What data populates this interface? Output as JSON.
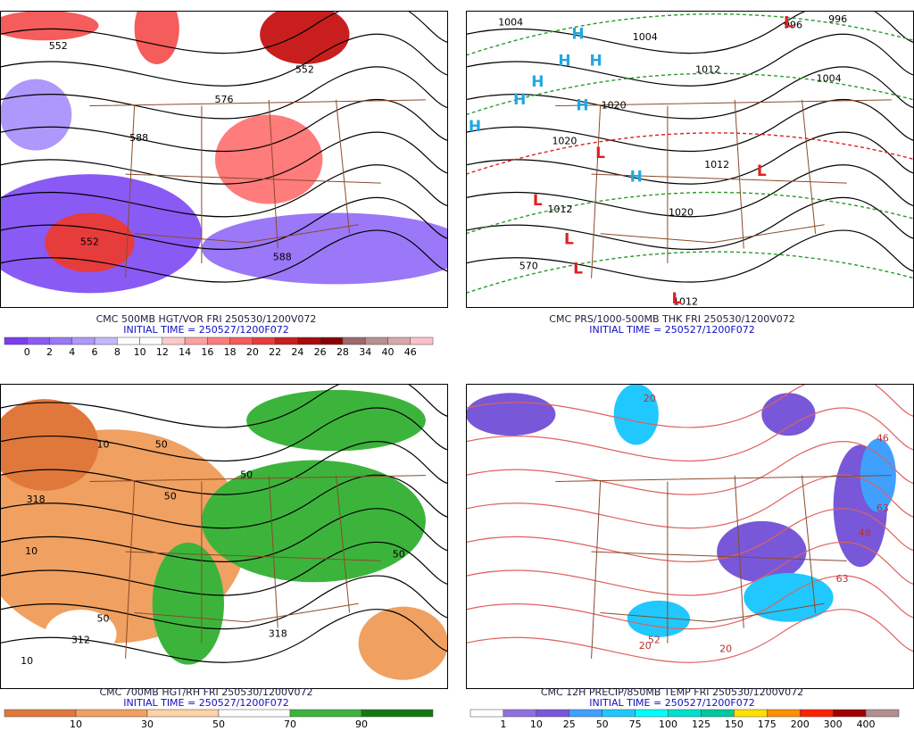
{
  "panels": [
    {
      "title": "CMC 500MB HGT/VOR FRI 250530/1200V072",
      "init_time": "INITIAL TIME = 250527/1200F072",
      "colorbar_labels": [
        "0",
        "2",
        "4",
        "6",
        "8",
        "10",
        "12",
        "14",
        "16",
        "18",
        "20",
        "22",
        "24",
        "26",
        "28",
        "34",
        "40",
        "46"
      ],
      "colorbar_colors": [
        "#7a3cf0",
        "#8a5af5",
        "#9a78f8",
        "#ae98fb",
        "#c4b8ff",
        "#ffffff",
        "#ffffff",
        "#ffc8c8",
        "#ffa0a0",
        "#ff7c7c",
        "#f55c5c",
        "#e63c3c",
        "#c81e1e",
        "#a80a0a",
        "#8a0000",
        "#9c6a6a",
        "#b89090",
        "#d8a8a8",
        "#ffc0cc"
      ],
      "contour_labels": [
        "552",
        "552",
        "576",
        "588",
        "552",
        "588"
      ],
      "highs": [],
      "lows": []
    },
    {
      "title": "CMC PRS/1000-500MB THK FRI 250530/1200V072",
      "init_time": "INITIAL TIME = 250527/1200F072",
      "colorbar_labels": [],
      "colorbar_colors": [],
      "contour_labels": [
        "1004",
        "1004",
        "1012",
        "1020",
        "1020",
        "1004",
        "996",
        "996",
        "1012",
        "1012",
        "1020",
        "570",
        "1012"
      ],
      "highs": [
        "H",
        "H",
        "H",
        "H",
        "H",
        "H",
        "H",
        "H"
      ],
      "lows": [
        "L",
        "L",
        "L",
        "L",
        "L",
        "L",
        "L"
      ]
    },
    {
      "title": "CMC 700MB HGT/RH FRI 250530/1200V072",
      "init_time": "INITIAL TIME = 250527/1200F072",
      "colorbar_labels": [
        "10",
        "30",
        "50",
        "70",
        "90"
      ],
      "colorbar_colors": [
        "#e0783c",
        "#f0a060",
        "#ffd2a8",
        "#ffffff",
        "#3cb43c",
        "#147814"
      ],
      "contour_labels": [
        "50",
        "10",
        "318",
        "50",
        "50",
        "50",
        "10",
        "312",
        "50",
        "318",
        "10"
      ],
      "highs": [],
      "lows": []
    },
    {
      "title": "CMC 12H PRECIP/850MB TEMP FRI 250530/1200V072",
      "init_time": "INITIAL TIME = 250527/1200F072",
      "colorbar_labels": [
        "1",
        "10",
        "25",
        "50",
        "75",
        "100",
        "125",
        "150",
        "175",
        "200",
        "300",
        "400"
      ],
      "colorbar_colors": [
        "#ffffff",
        "#9070e0",
        "#7858d8",
        "#40a0ff",
        "#20c8ff",
        "#00ffff",
        "#00e0d0",
        "#00c8a0",
        "#ffe000",
        "#ff9000",
        "#ff2000",
        "#a00000",
        "#b09090"
      ],
      "contour_labels": [
        "20",
        "20",
        "48",
        "63",
        "63",
        "52",
        "20",
        "46"
      ],
      "highs": [],
      "lows": []
    }
  ]
}
